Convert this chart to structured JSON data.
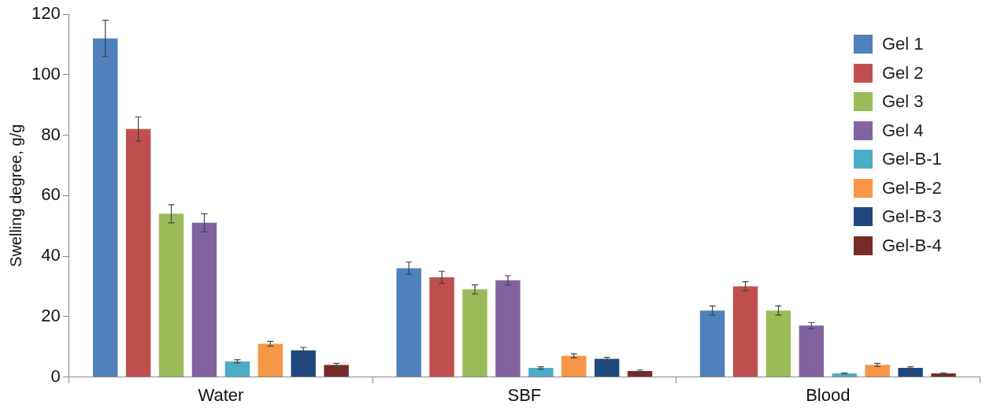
{
  "chart_data": {
    "type": "bar",
    "ylabel": "Swelling degree, g/g",
    "categories": [
      "Water",
      "SBF",
      "Blood"
    ],
    "series": [
      {
        "name": "Gel 1",
        "color": "#4f81bd",
        "values": [
          112,
          36,
          22
        ],
        "errors": [
          6,
          2,
          1.5
        ]
      },
      {
        "name": "Gel 2",
        "color": "#c0504d",
        "values": [
          82,
          33,
          30
        ],
        "errors": [
          4,
          2,
          1.5
        ]
      },
      {
        "name": "Gel 3",
        "color": "#9bbb59",
        "values": [
          54,
          29,
          22
        ],
        "errors": [
          3,
          1.5,
          1.5
        ]
      },
      {
        "name": "Gel 4",
        "color": "#8064a2",
        "values": [
          51,
          32,
          17
        ],
        "errors": [
          3,
          1.5,
          1
        ]
      },
      {
        "name": "Gel-B-1",
        "color": "#4bacc6",
        "values": [
          5.2,
          3,
          1.2
        ],
        "errors": [
          0.5,
          0.4,
          0.2
        ]
      },
      {
        "name": "Gel-B-2",
        "color": "#f79646",
        "values": [
          11,
          7,
          4
        ],
        "errors": [
          0.8,
          0.7,
          0.5
        ]
      },
      {
        "name": "Gel-B-3",
        "color": "#1f497d",
        "values": [
          8.8,
          6,
          3
        ],
        "errors": [
          1,
          0.5,
          0.4
        ]
      },
      {
        "name": "Gel-B-4",
        "color": "#772c2a",
        "values": [
          4,
          2,
          1.2
        ],
        "errors": [
          0.5,
          0.3,
          0.2
        ]
      }
    ],
    "ylim": [
      0,
      120
    ],
    "yticks": [
      0,
      20,
      40,
      60,
      80,
      100,
      120
    ],
    "grid": false,
    "legend": "top right"
  }
}
